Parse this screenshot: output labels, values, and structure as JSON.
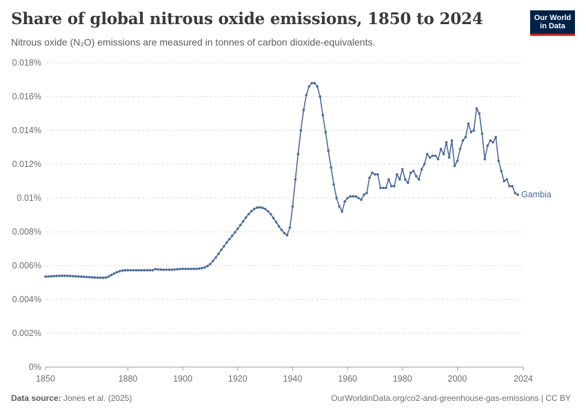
{
  "header": {
    "title": "Share of global nitrous oxide emissions, 1850 to 2024",
    "subtitle": "Nitrous oxide (N₂O) emissions are measured in tonnes of carbon dioxide-equivalents.",
    "logo_line1": "Our World",
    "logo_line2": "in Data"
  },
  "footer": {
    "source_label": "Data source:",
    "source_value": "Jones et al. (2025)",
    "url": "OurWorldinData.org/co2-and-greenhouse-gas-emissions | CC BY"
  },
  "colors": {
    "series": "#4c6a9c",
    "grid": "#dddddd",
    "text": "#6d6d6d"
  },
  "chart_data": {
    "type": "line",
    "title": "Share of global nitrous oxide emissions, 1850 to 2024",
    "xlabel": "",
    "ylabel": "",
    "xlim": [
      1850,
      2024
    ],
    "ylim": [
      0,
      0.018
    ],
    "x_ticks": [
      1850,
      1880,
      1900,
      1920,
      1940,
      1960,
      1980,
      2000,
      2024
    ],
    "y_ticks": [
      {
        "value": 0,
        "label": "0%"
      },
      {
        "value": 0.002,
        "label": "0.002%"
      },
      {
        "value": 0.004,
        "label": "0.004%"
      },
      {
        "value": 0.006,
        "label": "0.006%"
      },
      {
        "value": 0.008,
        "label": "0.008%"
      },
      {
        "value": 0.01,
        "label": "0.01%"
      },
      {
        "value": 0.012,
        "label": "0.012%"
      },
      {
        "value": 0.014,
        "label": "0.014%"
      },
      {
        "value": 0.016,
        "label": "0.016%"
      },
      {
        "value": 0.018,
        "label": "0.018%"
      }
    ],
    "grid": true,
    "legend": "right end label",
    "series": [
      {
        "name": "Gambia",
        "x_start": 1850,
        "values": [
          0.00535,
          0.00536,
          0.00537,
          0.00538,
          0.00539,
          0.0054,
          0.0054,
          0.0054,
          0.0054,
          0.00539,
          0.00538,
          0.00537,
          0.00536,
          0.00535,
          0.00534,
          0.00533,
          0.00532,
          0.00531,
          0.0053,
          0.00529,
          0.00529,
          0.00528,
          0.0053,
          0.00535,
          0.00545,
          0.00553,
          0.00561,
          0.00567,
          0.00571,
          0.00572,
          0.00573,
          0.00573,
          0.00573,
          0.00573,
          0.00573,
          0.00573,
          0.00573,
          0.00573,
          0.00573,
          0.00573,
          0.0058,
          0.00578,
          0.00577,
          0.00576,
          0.00576,
          0.00576,
          0.00576,
          0.00577,
          0.00579,
          0.0058,
          0.00581,
          0.00581,
          0.00581,
          0.00581,
          0.00581,
          0.00581,
          0.00583,
          0.00585,
          0.0059,
          0.00598,
          0.0061,
          0.00628,
          0.00648,
          0.0067,
          0.00693,
          0.00715,
          0.00737,
          0.00757,
          0.00777,
          0.00797,
          0.00818,
          0.0084,
          0.00862,
          0.00885,
          0.00905,
          0.00922,
          0.00935,
          0.00943,
          0.00945,
          0.00942,
          0.00935,
          0.00922,
          0.00905,
          0.00882,
          0.00858,
          0.00833,
          0.00811,
          0.00792,
          0.0078,
          0.00825,
          0.0095,
          0.0111,
          0.0126,
          0.014,
          0.0152,
          0.0161,
          0.0166,
          0.0168,
          0.0168,
          0.0166,
          0.016,
          0.0149,
          0.0139,
          0.0128,
          0.0118,
          0.0108,
          0.01,
          0.0095,
          0.0092,
          0.0098,
          0.01,
          0.0101,
          0.0101,
          0.0101,
          0.01,
          0.0099,
          0.0102,
          0.0103,
          0.0112,
          0.0115,
          0.0114,
          0.0114,
          0.0106,
          0.0106,
          0.0106,
          0.0111,
          0.0107,
          0.0107,
          0.0114,
          0.0111,
          0.0117,
          0.0111,
          0.0109,
          0.0115,
          0.0116,
          0.0113,
          0.0111,
          0.0117,
          0.012,
          0.0126,
          0.0124,
          0.0125,
          0.0125,
          0.0123,
          0.0129,
          0.0126,
          0.0133,
          0.0124,
          0.0134,
          0.0119,
          0.0122,
          0.0129,
          0.0134,
          0.0136,
          0.0144,
          0.0139,
          0.014,
          0.0153,
          0.015,
          0.0138,
          0.0123,
          0.0131,
          0.0134,
          0.0133,
          0.0136,
          0.0122,
          0.0116,
          0.011,
          0.0111,
          0.0107,
          0.0107,
          0.0103,
          0.0102
        ]
      }
    ]
  }
}
